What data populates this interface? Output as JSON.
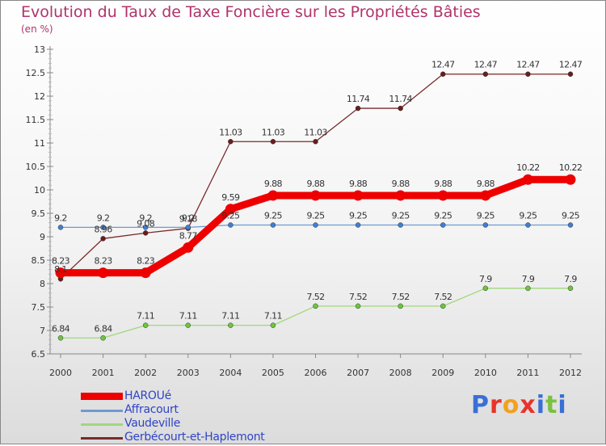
{
  "title": "Evolution du Taux de Taxe Foncière sur les Propriétés Bâties",
  "unit": "(en %)",
  "logo": {
    "letters": [
      "P",
      "r",
      "o",
      "x",
      "i",
      "t",
      "i"
    ],
    "colors": [
      "#3a6fd6",
      "#e8342b",
      "#f2a11f",
      "#e8342b",
      "#3a6fd6",
      "#7bc043",
      "#3a6fd6"
    ]
  },
  "chart_data": {
    "type": "line",
    "title": "Evolution du Taux de Taxe Foncière sur les Propriétés Bâties",
    "ylabel": "(en %)",
    "xlabel": "",
    "ylim": [
      6.5,
      13
    ],
    "yticks": [
      "6.5",
      "7",
      "7.5",
      "8",
      "8.5",
      "9",
      "9.5",
      "10",
      "10.5",
      "11",
      "11.5",
      "12",
      "12.5",
      "13"
    ],
    "x": [
      "2000",
      "2001",
      "2002",
      "2003",
      "2004",
      "2005",
      "2006",
      "2007",
      "2008",
      "2009",
      "2010",
      "2011",
      "2012"
    ],
    "grid": false,
    "legend": "bottom-left",
    "series": [
      {
        "name": "Gerbécourt-et-Haplemont",
        "color": "#7a2a2a",
        "marker": "#6a1d1d",
        "values": [
          8.1,
          8.96,
          9.08,
          9.18,
          11.03,
          11.03,
          11.03,
          11.74,
          11.74,
          12.47,
          12.47,
          12.47,
          12.47
        ],
        "labels": [
          "8.1",
          "8.96",
          "9.08",
          "9.18",
          "11.03",
          "11.03",
          "11.03",
          "11.74",
          "11.74",
          "12.47",
          "12.47",
          "12.47",
          "12.47"
        ]
      },
      {
        "name": "Affracourt",
        "color": "#6e9ad1",
        "marker": "#3f7fd0",
        "values": [
          9.2,
          9.2,
          9.2,
          9.2,
          9.25,
          9.25,
          9.25,
          9.25,
          9.25,
          9.25,
          9.25,
          9.25,
          9.25
        ],
        "labels": [
          "9.2",
          "9.2",
          "9.2",
          "9.2",
          "9.25",
          "9.25",
          "9.25",
          "9.25",
          "9.25",
          "9.25",
          "9.25",
          "9.25",
          "9.25"
        ]
      },
      {
        "name": "Vaudeville",
        "color": "#9fd87a",
        "marker": "#6cc63a",
        "values": [
          6.84,
          6.84,
          7.11,
          7.11,
          7.11,
          7.11,
          7.52,
          7.52,
          7.52,
          7.52,
          7.9,
          7.9,
          7.9
        ],
        "labels": [
          "6.84",
          "6.84",
          "7.11",
          "7.11",
          "7.11",
          "7.11",
          "7.52",
          "7.52",
          "7.52",
          "7.52",
          "7.9",
          "7.9",
          "7.9"
        ]
      },
      {
        "name": "HAROUé",
        "color": "#ee0000",
        "marker": "#ee0000",
        "values": [
          8.23,
          8.23,
          8.23,
          8.77,
          9.59,
          9.88,
          9.88,
          9.88,
          9.88,
          9.88,
          9.88,
          10.22,
          10.22
        ],
        "labels": [
          "8.23",
          "8.23",
          "8.23",
          "8.77",
          "9.59",
          "9.88",
          "9.88",
          "9.88",
          "9.88",
          "9.88",
          "9.88",
          "10.22",
          "10.22"
        ]
      }
    ]
  },
  "legend": [
    {
      "name": "HAROUé",
      "color": "#ee0000"
    },
    {
      "name": "Affracourt",
      "color": "#6e9ad1"
    },
    {
      "name": "Vaudeville",
      "color": "#9fd87a"
    },
    {
      "name": "Gerbécourt-et-Haplemont",
      "color": "#7a2a2a"
    }
  ]
}
